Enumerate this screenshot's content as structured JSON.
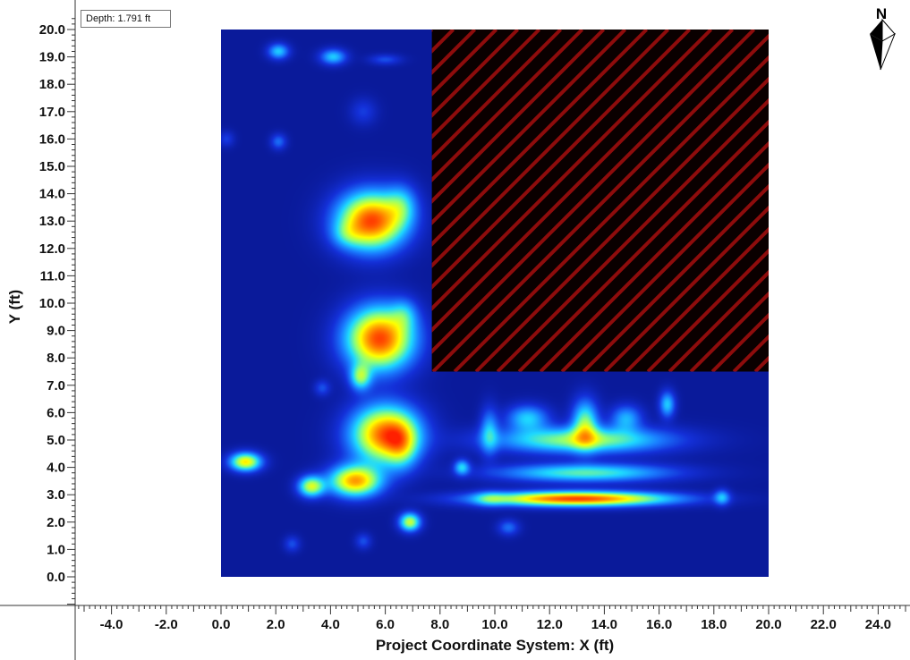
{
  "depth_label": "Depth: 1.791 ft",
  "north_label": "N",
  "colors": {
    "background": "#0a1a9a",
    "masked_fill": "#0a0000",
    "masked_hatch": "#8e0c0c",
    "colormap": [
      "#0a1a9a",
      "#1430d8",
      "#1a7cff",
      "#1ed8ff",
      "#8cff7a",
      "#ffff00",
      "#ff9000",
      "#ff2000"
    ]
  },
  "chart_data": {
    "type": "heatmap",
    "xlabel": "Project Coordinate System: X (ft)",
    "ylabel": "Y (ft)",
    "x_ticks": [
      "-4.0",
      "-2.0",
      "0.0",
      "2.0",
      "4.0",
      "6.0",
      "8.0",
      "10.0",
      "12.0",
      "14.0",
      "16.0",
      "18.0",
      "20.0",
      "22.0",
      "24.0"
    ],
    "y_ticks": [
      "0.0",
      "1.0",
      "2.0",
      "3.0",
      "4.0",
      "5.0",
      "6.0",
      "7.0",
      "8.0",
      "9.0",
      "10.0",
      "11.0",
      "12.0",
      "13.0",
      "14.0",
      "15.0",
      "16.0",
      "17.0",
      "18.0",
      "19.0",
      "20.0"
    ],
    "xlim": [
      -5.3,
      25.0
    ],
    "ylim": [
      -1.0,
      20.5
    ],
    "data_extent": {
      "x": [
        0.0,
        20.0
      ],
      "y": [
        0.0,
        20.0
      ]
    },
    "masked_region": {
      "x": [
        7.7,
        20.0
      ],
      "y": [
        7.5,
        20.0
      ]
    },
    "value_scale": "relative 0-1 (no colorbar shown)",
    "anomalies": [
      {
        "x": 5.5,
        "y": 13.0,
        "sx": 1.3,
        "sy": 1.1,
        "value": 0.95
      },
      {
        "x": 6.6,
        "y": 13.6,
        "sx": 0.6,
        "sy": 0.8,
        "value": 0.25
      },
      {
        "x": 4.6,
        "y": 12.5,
        "sx": 0.6,
        "sy": 0.5,
        "value": 0.15
      },
      {
        "x": 5.8,
        "y": 8.7,
        "sx": 1.3,
        "sy": 1.2,
        "value": 0.95
      },
      {
        "x": 6.7,
        "y": 9.6,
        "sx": 0.5,
        "sy": 0.6,
        "value": 0.2
      },
      {
        "x": 5.1,
        "y": 7.3,
        "sx": 0.4,
        "sy": 0.5,
        "value": 0.45
      },
      {
        "x": 6.0,
        "y": 5.2,
        "sx": 1.3,
        "sy": 1.1,
        "value": 0.9
      },
      {
        "x": 6.6,
        "y": 4.8,
        "sx": 0.6,
        "sy": 0.9,
        "value": 0.3
      },
      {
        "x": 4.9,
        "y": 3.5,
        "sx": 1.0,
        "sy": 0.6,
        "value": 0.8
      },
      {
        "x": 3.3,
        "y": 3.3,
        "sx": 0.5,
        "sy": 0.4,
        "value": 0.6
      },
      {
        "x": 0.9,
        "y": 4.2,
        "sx": 0.6,
        "sy": 0.35,
        "value": 0.7
      },
      {
        "x": 6.9,
        "y": 2.0,
        "sx": 0.4,
        "sy": 0.35,
        "value": 0.6
      },
      {
        "x": 13.0,
        "y": 2.85,
        "sx": 3.5,
        "sy": 0.28,
        "value": 0.95
      },
      {
        "x": 9.8,
        "y": 2.85,
        "sx": 0.6,
        "sy": 0.3,
        "value": 0.2
      },
      {
        "x": 13.3,
        "y": 3.8,
        "sx": 3.3,
        "sy": 0.35,
        "value": 0.45
      },
      {
        "x": 13.2,
        "y": 5.0,
        "sx": 3.3,
        "sy": 0.5,
        "value": 0.55
      },
      {
        "x": 13.3,
        "y": 5.6,
        "sx": 0.5,
        "sy": 0.9,
        "value": 0.5
      },
      {
        "x": 11.2,
        "y": 5.8,
        "sx": 0.8,
        "sy": 0.5,
        "value": 0.35
      },
      {
        "x": 14.8,
        "y": 5.8,
        "sx": 0.6,
        "sy": 0.5,
        "value": 0.3
      },
      {
        "x": 16.3,
        "y": 6.3,
        "sx": 0.3,
        "sy": 0.5,
        "value": 0.35
      },
      {
        "x": 9.8,
        "y": 5.3,
        "sx": 0.35,
        "sy": 0.9,
        "value": 0.3
      },
      {
        "x": 8.8,
        "y": 4.0,
        "sx": 0.3,
        "sy": 0.3,
        "value": 0.35
      },
      {
        "x": 18.3,
        "y": 2.9,
        "sx": 0.3,
        "sy": 0.3,
        "value": 0.3
      },
      {
        "x": 2.1,
        "y": 19.2,
        "sx": 0.4,
        "sy": 0.3,
        "value": 0.35
      },
      {
        "x": 4.1,
        "y": 19.0,
        "sx": 0.5,
        "sy": 0.3,
        "value": 0.35
      },
      {
        "x": 6.0,
        "y": 18.9,
        "sx": 0.6,
        "sy": 0.2,
        "value": 0.15
      },
      {
        "x": 5.2,
        "y": 17.0,
        "sx": 0.5,
        "sy": 0.5,
        "value": 0.12
      },
      {
        "x": 2.1,
        "y": 15.9,
        "sx": 0.3,
        "sy": 0.3,
        "value": 0.2
      },
      {
        "x": 0.2,
        "y": 16.0,
        "sx": 0.3,
        "sy": 0.3,
        "value": 0.12
      },
      {
        "x": 2.6,
        "y": 1.2,
        "sx": 0.3,
        "sy": 0.3,
        "value": 0.15
      },
      {
        "x": 5.2,
        "y": 1.3,
        "sx": 0.3,
        "sy": 0.3,
        "value": 0.15
      },
      {
        "x": 3.7,
        "y": 6.9,
        "sx": 0.3,
        "sy": 0.3,
        "value": 0.15
      },
      {
        "x": 10.5,
        "y": 1.8,
        "sx": 0.4,
        "sy": 0.3,
        "value": 0.2
      }
    ]
  }
}
